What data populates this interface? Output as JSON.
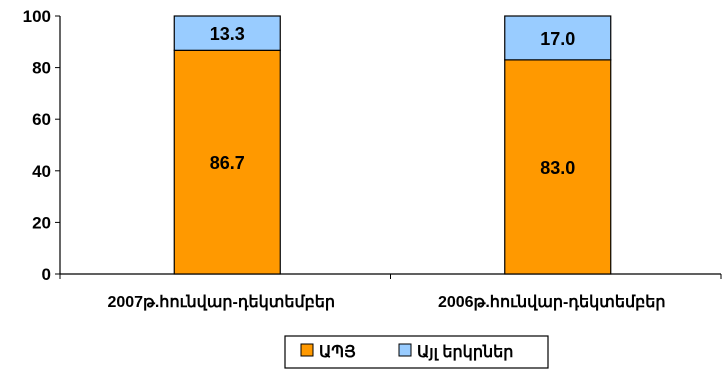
{
  "chart_data": {
    "type": "bar",
    "stacked": true,
    "categories": [
      "2007թ.հունվար-դեկտեմբեր",
      "2006թ.հունվար-դեկտեմբեր"
    ],
    "series": [
      {
        "name": "ԱՊՅ",
        "values": [
          86.7,
          83.0
        ],
        "labels": [
          "86.7",
          "83.0"
        ],
        "color": "#FF9900"
      },
      {
        "name": "Այլ երկրներ",
        "values": [
          13.3,
          17.0
        ],
        "labels": [
          "13.3",
          "17.0"
        ],
        "color": "#99CCFF"
      }
    ],
    "ylim": [
      0,
      100
    ],
    "yticks": [
      "0",
      "20",
      "40",
      "60",
      "80",
      "100"
    ],
    "grid": false,
    "legend": "bottom"
  }
}
